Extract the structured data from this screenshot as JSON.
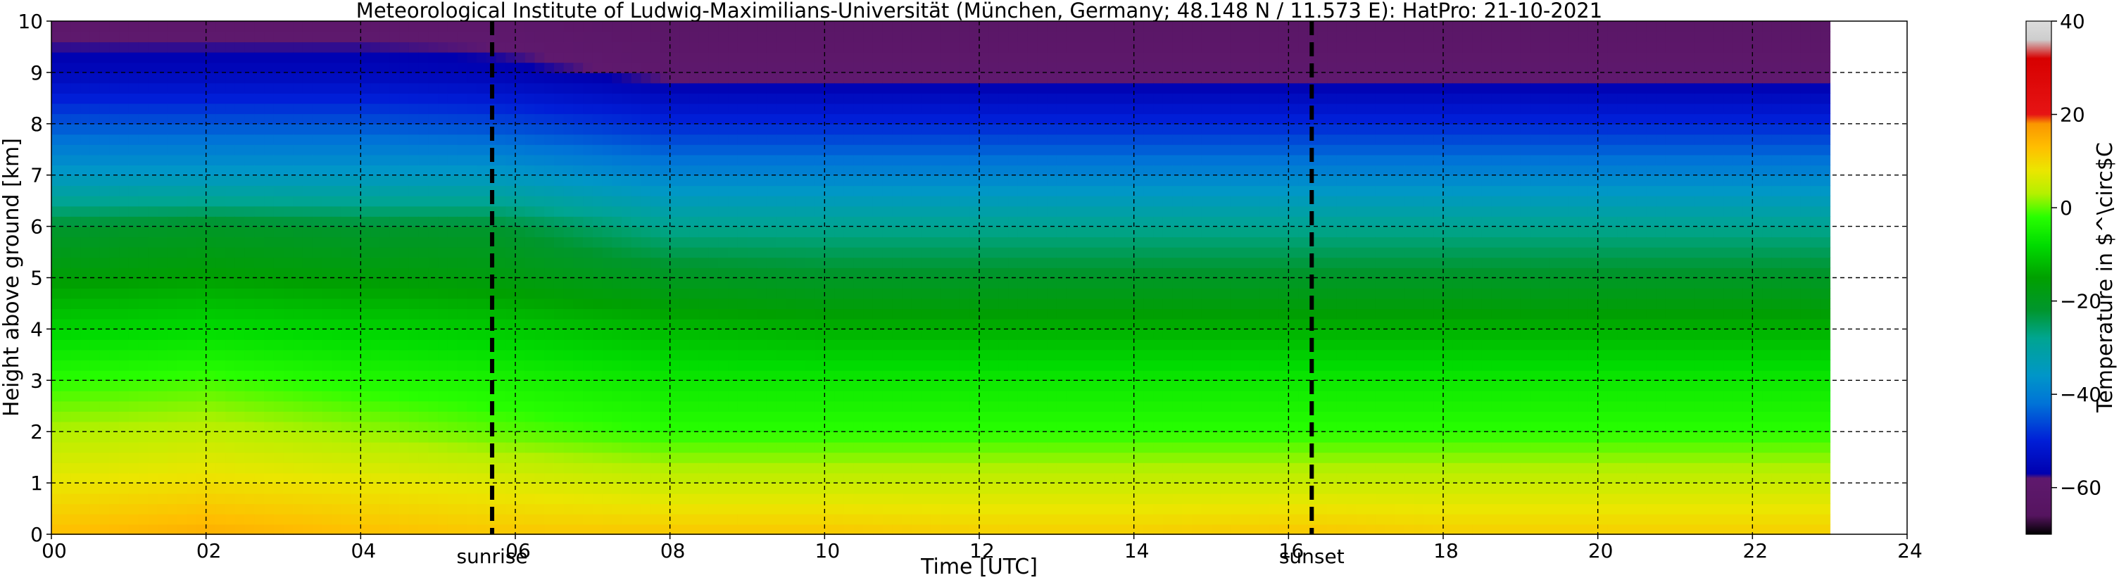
{
  "chart_data": {
    "type": "heatmap",
    "title": "Meteorological Institute of Ludwig-Maximilians-Universität (München, Germany; 48.148 N / 11.573 E):    HatPro: 21-10-2021",
    "xlabel": "Time [UTC]",
    "ylabel": "Height above ground [km]",
    "xlim": [
      0,
      24
    ],
    "ylim": [
      0,
      10
    ],
    "x_ticks": [
      "00",
      "02",
      "04",
      "06",
      "08",
      "10",
      "12",
      "14",
      "16",
      "18",
      "20",
      "22",
      "24"
    ],
    "y_ticks": [
      "0",
      "1",
      "2",
      "3",
      "4",
      "5",
      "6",
      "7",
      "8",
      "9",
      "10"
    ],
    "grid": true,
    "data_end_time_utc": 23.0,
    "events": [
      {
        "label": "sunrise",
        "time_utc": 5.7
      },
      {
        "label": "sunset",
        "time_utc": 16.3
      }
    ],
    "colorbar": {
      "label": "Temperature in $^\\circ$C",
      "ticks": [
        40,
        20,
        0,
        -20,
        -40,
        -60
      ],
      "range": [
        -70,
        40
      ]
    },
    "temperature_profiles": {
      "unit": "°C",
      "times_utc": [
        0,
        2,
        4,
        5.7,
        8,
        10,
        12,
        14,
        16.3,
        18,
        20,
        23
      ],
      "heights_km": [
        0,
        1,
        2,
        3,
        4,
        5,
        6,
        7,
        8,
        9,
        10
      ],
      "temperature_c": [
        [
          13,
          8,
          3,
          -2,
          -9,
          -16,
          -22,
          -35,
          -45,
          -55,
          -60
        ],
        [
          15,
          9,
          4,
          -1,
          -8,
          -15,
          -21,
          -35,
          -45,
          -55,
          -60
        ],
        [
          13,
          8,
          2,
          -3,
          -9,
          -16,
          -22,
          -35,
          -45,
          -55,
          -60
        ],
        [
          12,
          7,
          0,
          -4,
          -10,
          -17,
          -22,
          -35,
          -46,
          -56,
          -60
        ],
        [
          12,
          5,
          -2,
          -6,
          -12,
          -20,
          -28,
          -39,
          -49,
          -59,
          -62
        ],
        [
          12,
          5,
          -2,
          -6,
          -13,
          -21,
          -28,
          -39,
          -49,
          -59,
          -62
        ],
        [
          11,
          5,
          -2,
          -6,
          -13,
          -21,
          -28,
          -39,
          -49,
          -59,
          -62
        ],
        [
          11,
          5,
          -2,
          -6,
          -13,
          -21,
          -28,
          -39,
          -49,
          -59,
          -62
        ],
        [
          12,
          5,
          -2,
          -6,
          -13,
          -21,
          -28,
          -39,
          -49,
          -59,
          -62
        ],
        [
          11,
          5,
          -2,
          -6,
          -13,
          -21,
          -28,
          -39,
          -49,
          -59,
          -62
        ],
        [
          11,
          5,
          -2,
          -6,
          -13,
          -21,
          -28,
          -39,
          -49,
          -59,
          -62
        ],
        [
          11,
          5,
          -2,
          -6,
          -13,
          -21,
          -28,
          -39,
          -49,
          -59,
          -62
        ]
      ]
    }
  }
}
